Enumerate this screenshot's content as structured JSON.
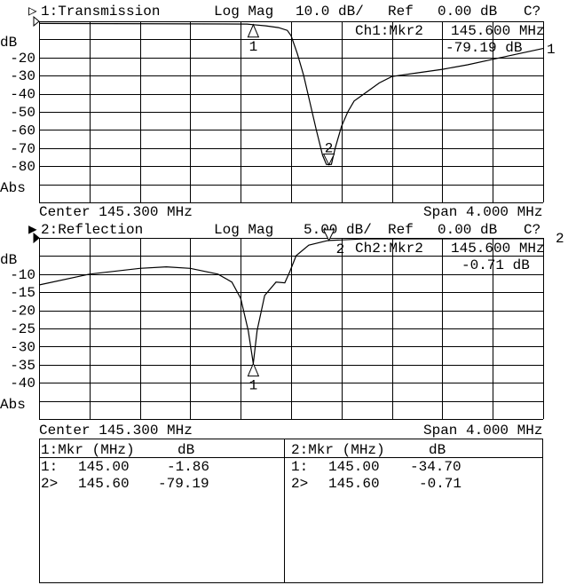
{
  "colors": {
    "background": "#ffffff",
    "foreground": "#000000"
  },
  "chart_data": [
    {
      "type": "line",
      "title": "1:Transmission",
      "channel_marker": "▷",
      "format": "Log Mag",
      "scale": "10.0 dB/",
      "ref_label": "Ref",
      "ref_value": "0.00 dB",
      "status": "C?",
      "ylabel": "dB",
      "ylabel_bottom": "Abs",
      "ytick_labels": [
        "-20",
        "-30",
        "-40",
        "-50",
        "-60",
        "-70",
        "-80"
      ],
      "yticks": [
        -20,
        -30,
        -40,
        -50,
        -60,
        -70,
        -80
      ],
      "ylim": [
        -100,
        0
      ],
      "xlim": [
        143.3,
        147.3
      ],
      "grid": true,
      "center": "Center 145.300 MHz",
      "span": "Span 4.000 MHz",
      "marker_readout": {
        "label": "Ch1:Mkr2",
        "freq": "145.600 MHz",
        "value": "-79.19 dB"
      },
      "end_label": "1",
      "markers": [
        {
          "id": "1",
          "freq_mhz": 145.0,
          "db": -1.86,
          "active": false
        },
        {
          "id": "2",
          "freq_mhz": 145.6,
          "db": -79.19,
          "active": true
        }
      ],
      "series": [
        {
          "x": [
            143.3,
            144.5,
            144.95,
            145.0,
            145.1,
            145.2,
            145.27,
            145.3,
            145.35,
            145.4,
            145.45,
            145.5,
            145.55,
            145.58,
            145.6,
            145.62,
            145.65,
            145.7,
            145.75,
            145.8,
            145.9,
            146.0,
            146.1,
            146.3,
            146.5,
            146.7,
            146.9,
            147.1,
            147.3
          ],
          "y": [
            -1.2,
            -1.4,
            -1.5,
            -1.86,
            -2.5,
            -3.5,
            -5,
            -8,
            -18,
            -30,
            -45,
            -60,
            -74,
            -79,
            -79.19,
            -79,
            -70,
            -58,
            -50,
            -44,
            -39,
            -34,
            -30.5,
            -28.5,
            -26.5,
            -24,
            -21,
            -18,
            -15
          ]
        }
      ]
    },
    {
      "type": "line",
      "title": "2:Reflection",
      "channel_marker": "▶",
      "format": "Log Mag",
      "scale": "5.00 dB/",
      "ref_label": "Ref",
      "ref_value": "0.00 dB",
      "status": "C?",
      "ylabel": "dB",
      "ylabel_bottom": "Abs",
      "ytick_labels": [
        "-10",
        "-15",
        "-20",
        "-25",
        "-30",
        "-35",
        "-40"
      ],
      "yticks": [
        -10,
        -15,
        -20,
        -25,
        -30,
        -35,
        -40
      ],
      "ylim": [
        -50,
        0
      ],
      "xlim": [
        143.3,
        147.3
      ],
      "grid": true,
      "center": "Center 145.300 MHz",
      "span": "Span 4.000 MHz",
      "marker_readout": {
        "label": "Ch2:Mkr2",
        "freq": "145.600 MHz",
        "value": "-0.71 dB"
      },
      "end_label": "2",
      "markers": [
        {
          "id": "1",
          "freq_mhz": 145.0,
          "db": -34.7,
          "active": false
        },
        {
          "id": "2",
          "freq_mhz": 145.6,
          "db": -0.71,
          "active": true
        }
      ],
      "series": [
        {
          "x": [
            143.3,
            143.7,
            144.1,
            144.31,
            144.5,
            144.72,
            144.83,
            144.9,
            144.96,
            145.0,
            145.03,
            145.09,
            145.18,
            145.25,
            145.29,
            145.34,
            145.44,
            145.58,
            145.6,
            145.87,
            147.3
          ],
          "y": [
            -13,
            -10,
            -8.4,
            -8,
            -8.4,
            -10,
            -12.2,
            -16.7,
            -25.6,
            -34.7,
            -25.6,
            -15.9,
            -12.2,
            -12.4,
            -9.3,
            -4.9,
            -2,
            -0.8,
            -0.71,
            -0.3,
            -0.2
          ]
        }
      ]
    }
  ],
  "marker_table": [
    {
      "header": "1:Mkr (MHz)",
      "unit": "dB",
      "rows": [
        {
          "id": "1:",
          "freq": "145.00",
          "value": "-1.86"
        },
        {
          "id": "2>",
          "freq": "145.60",
          "value": "-79.19"
        }
      ]
    },
    {
      "header": "2:Mkr (MHz)",
      "unit": "dB",
      "rows": [
        {
          "id": "1:",
          "freq": "145.00",
          "value": "-34.70"
        },
        {
          "id": "2>",
          "freq": "145.60",
          "value": "-0.71"
        }
      ]
    }
  ]
}
